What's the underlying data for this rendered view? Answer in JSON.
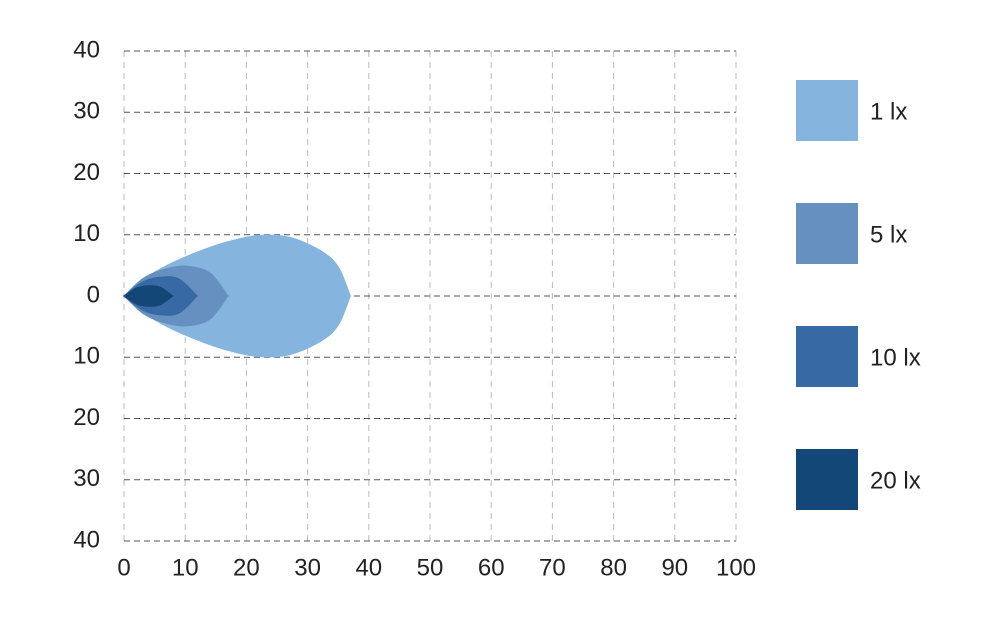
{
  "chart_data": {
    "type": "isolux",
    "xlim": [
      0,
      100
    ],
    "xticks": [
      0,
      10,
      20,
      30,
      40,
      50,
      60,
      70,
      80,
      90,
      100
    ],
    "ylim": [
      -40,
      40
    ],
    "yticks": [
      40,
      30,
      20,
      10,
      0,
      {
        "value": -10,
        "label": "10"
      },
      {
        "value": -20,
        "label": "20"
      },
      {
        "value": -30,
        "label": "30"
      },
      {
        "value": -40,
        "label": "40"
      }
    ],
    "grid": true,
    "mirrored": true,
    "legend": "right",
    "series": [
      {
        "name": "1 lx",
        "color": "#85b4df",
        "x": [
          0,
          3,
          7,
          12,
          17,
          22,
          27,
          32,
          35,
          37
        ],
        "values": [
          0,
          2.6,
          5,
          7.2,
          8.9,
          9.9,
          9.6,
          7.5,
          4.8,
          0
        ]
      },
      {
        "name": "5 lx",
        "color": "#6690bf",
        "x": [
          0,
          3,
          6,
          10,
          14,
          17
        ],
        "values": [
          0,
          2.8,
          4.2,
          4.9,
          3.8,
          0
        ]
      },
      {
        "name": "10 lx",
        "color": "#376aa5",
        "x": [
          0,
          3,
          6,
          9,
          12
        ],
        "values": [
          0,
          2.3,
          3.1,
          2.8,
          0
        ]
      },
      {
        "name": "20 lx",
        "color": "#134778",
        "x": [
          0,
          2,
          4,
          6,
          8
        ],
        "values": [
          0,
          1.3,
          1.7,
          1.4,
          0
        ]
      }
    ]
  }
}
